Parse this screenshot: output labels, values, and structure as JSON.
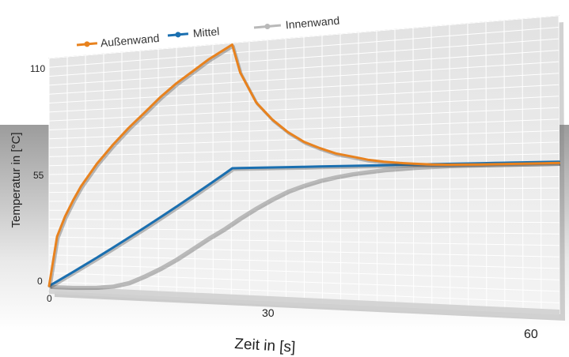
{
  "chart_data": {
    "type": "line",
    "xlabel": "Zeit in [s]",
    "ylabel": "Temperatur in [°C]",
    "x_ticks": [
      "0",
      "30",
      "60"
    ],
    "y_ticks": [
      "0",
      "55",
      "110"
    ],
    "xlim": [
      0,
      64
    ],
    "ylim": [
      0,
      110
    ],
    "grid": true,
    "legend_position": "top",
    "x": [
      0,
      1,
      2,
      3,
      4,
      6,
      8,
      10,
      12,
      14,
      16,
      18,
      20,
      22,
      23,
      24,
      26,
      28,
      30,
      32,
      34,
      36,
      38,
      40,
      42,
      44,
      46,
      48,
      50,
      52,
      54,
      56,
      58,
      60,
      62,
      64
    ],
    "series": [
      {
        "name": "Außenwand",
        "color": "#e8821e",
        "values": [
          0,
          25,
          35,
          43,
          50,
          61,
          70,
          78,
          85,
          92,
          98,
          103,
          108,
          112,
          114,
          101,
          87,
          79,
          73,
          68.5,
          65.5,
          63,
          61.5,
          60,
          59,
          58.3,
          57.8,
          57.4,
          57.2,
          57.1,
          57,
          57,
          57,
          57,
          57,
          57
        ]
      },
      {
        "name": "Mittel",
        "color": "#1a6fb0",
        "values": [
          0,
          2.5,
          5,
          7.5,
          10,
          15,
          20,
          25,
          30,
          35,
          40,
          45,
          50,
          55,
          57.5,
          57.5,
          57.5,
          57.5,
          57.5,
          57.5,
          57.5,
          57.5,
          57.5,
          57.5,
          57.5,
          57.5,
          57.5,
          57.5,
          57.5,
          57.5,
          57.5,
          57.5,
          57.5,
          57.5,
          57.5,
          57.5
        ]
      },
      {
        "name": "Innenwand",
        "color": "#b9b9b9",
        "values": [
          0,
          0,
          0,
          0,
          0.2,
          0.6,
          1.5,
          3.5,
          7,
          11,
          15.5,
          20.5,
          25.5,
          30,
          32.5,
          35,
          39.5,
          43.5,
          47,
          49.5,
          51.5,
          53,
          54.2,
          55,
          55.7,
          56.1,
          56.5,
          56.7,
          56.9,
          57,
          57,
          57,
          57,
          57,
          57,
          57
        ]
      }
    ]
  }
}
